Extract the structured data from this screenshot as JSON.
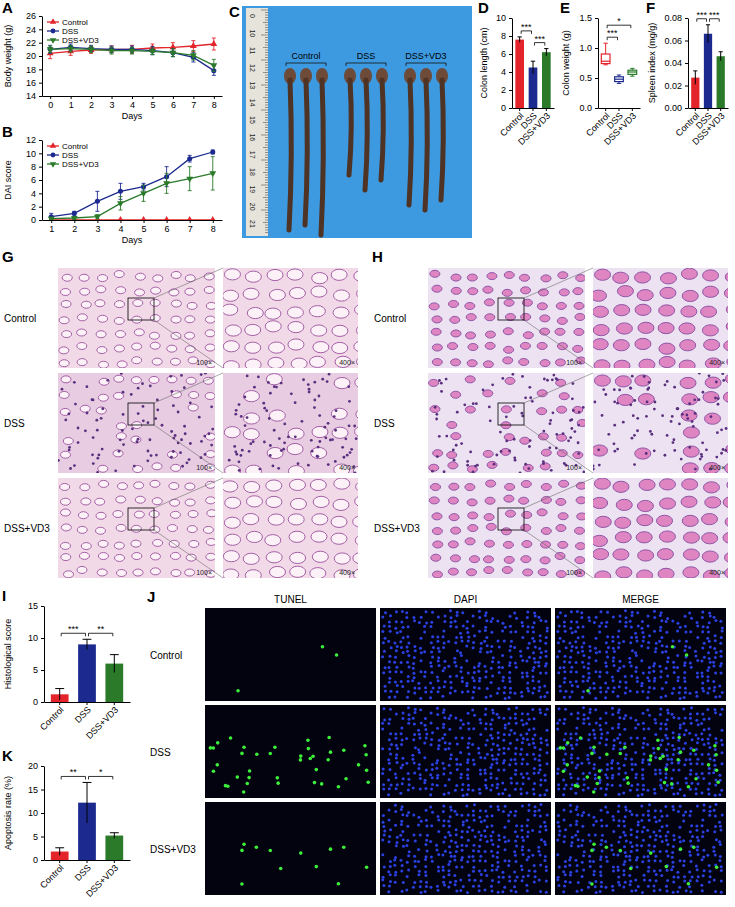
{
  "chart_data": [
    {
      "panel_label": "A",
      "type": "line",
      "x_label": "Days",
      "y_label": "Body weight (g)",
      "x": [
        0,
        1,
        2,
        3,
        4,
        5,
        6,
        7,
        8
      ],
      "xlim": [
        -0.4,
        8.4
      ],
      "xticks": [
        0,
        1,
        2,
        3,
        4,
        5,
        6,
        7,
        8
      ],
      "ylim": [
        14,
        26
      ],
      "yticks": [
        14,
        16,
        18,
        20,
        22,
        24,
        26
      ],
      "legend": "top-left",
      "series": [
        {
          "name": "Control",
          "color": "#e3242b",
          "marker": "triangle",
          "values": [
            20.4,
            20.7,
            20.9,
            21.0,
            21.0,
            21.2,
            21.3,
            21.5,
            21.8
          ],
          "errors": [
            0.8,
            0.6,
            0.5,
            0.5,
            0.6,
            0.6,
            0.7,
            0.8,
            0.9
          ]
        },
        {
          "name": "DSS",
          "color": "#1c2a8f",
          "marker": "circle",
          "values": [
            21.0,
            21.3,
            21.1,
            21.0,
            21.0,
            20.8,
            20.5,
            19.8,
            17.8
          ],
          "errors": [
            0.6,
            0.5,
            0.5,
            0.5,
            0.5,
            0.6,
            0.6,
            0.7,
            0.7
          ]
        },
        {
          "name": "DSS+VD3",
          "color": "#2a7a2a",
          "marker": "triangle-down",
          "values": [
            21.0,
            21.1,
            21.0,
            20.8,
            20.8,
            20.7,
            20.5,
            20.1,
            18.6
          ],
          "errors": [
            0.5,
            0.5,
            0.5,
            0.5,
            0.5,
            0.5,
            0.6,
            0.7,
            0.9
          ]
        }
      ]
    },
    {
      "panel_label": "B",
      "type": "line",
      "x_label": "Days",
      "y_label": "DAI score",
      "x": [
        1,
        2,
        3,
        4,
        5,
        6,
        7,
        8
      ],
      "xlim": [
        0.6,
        8.4
      ],
      "xticks": [
        1,
        2,
        3,
        4,
        5,
        6,
        7,
        8
      ],
      "ylim": [
        0,
        12
      ],
      "yticks": [
        0,
        2,
        4,
        6,
        8,
        10,
        12
      ],
      "legend": "top-left",
      "series": [
        {
          "name": "Control",
          "color": "#e3242b",
          "marker": "triangle",
          "values": [
            0,
            0,
            0,
            0,
            0,
            0,
            0,
            0
          ],
          "errors": [
            0,
            0,
            0,
            0,
            0,
            0,
            0,
            0
          ]
        },
        {
          "name": "DSS",
          "color": "#1c2a8f",
          "marker": "circle",
          "values": [
            0.5,
            1.0,
            2.8,
            4.3,
            5.0,
            6.5,
            9.2,
            10.2
          ],
          "errors": [
            0.5,
            0.3,
            1.5,
            1.2,
            0.5,
            1.5,
            0.5,
            0.3
          ]
        },
        {
          "name": "DSS+VD3",
          "color": "#2a7a2a",
          "marker": "triangle-down",
          "values": [
            0.2,
            0.3,
            0.5,
            2.5,
            4.0,
            5.5,
            6.2,
            7.0
          ],
          "errors": [
            0.2,
            0.2,
            0.3,
            1.0,
            1.2,
            1.5,
            1.8,
            2.5
          ]
        }
      ]
    },
    {
      "panel_label": "D",
      "type": "bar",
      "y_label": "Colon length (cm)",
      "categories": [
        "Control",
        "DSS",
        "DSS+VD3"
      ],
      "values": [
        7.6,
        4.5,
        6.2
      ],
      "errors": [
        0.3,
        0.7,
        0.4
      ],
      "colors": [
        "#e3242b",
        "#1c2a8f",
        "#2a7a2a"
      ],
      "ylim": [
        0,
        10
      ],
      "yticks": [
        0,
        2,
        4,
        6,
        8,
        10
      ],
      "annotations": [
        {
          "from": 0,
          "to": 1,
          "text": "***"
        },
        {
          "from": 1,
          "to": 2,
          "text": "***"
        }
      ]
    },
    {
      "panel_label": "E",
      "type": "box",
      "y_label": "Colon weight (g)",
      "categories": [
        "Control",
        "DSS",
        "DSS+VD3"
      ],
      "colors": [
        "#e3242b",
        "#1c2a8f",
        "#2a7a2a"
      ],
      "boxes": [
        {
          "min": 0.72,
          "q1": 0.74,
          "median": 0.78,
          "q3": 0.9,
          "max": 1.08
        },
        {
          "min": 0.41,
          "q1": 0.44,
          "median": 0.48,
          "q3": 0.52,
          "max": 0.55
        },
        {
          "min": 0.53,
          "q1": 0.56,
          "median": 0.6,
          "q3": 0.63,
          "max": 0.66
        }
      ],
      "ylim": [
        0,
        1.5
      ],
      "yticks": [
        {
          "value": 0,
          "label": "0.0"
        },
        0.5,
        {
          "value": 1,
          "label": "1.0"
        },
        1.5
      ],
      "annotations": [
        {
          "from": 0,
          "to": 1,
          "text": "***"
        },
        {
          "from": 0,
          "to": 2,
          "text": "*"
        }
      ]
    },
    {
      "panel_label": "F",
      "type": "bar",
      "y_label": "Spleen index (mg/g)",
      "categories": [
        "Control",
        "DSS",
        "DSS+VD3"
      ],
      "values": [
        0.027,
        0.066,
        0.046
      ],
      "errors": [
        0.006,
        0.008,
        0.004
      ],
      "colors": [
        "#e3242b",
        "#1c2a8f",
        "#2a7a2a"
      ],
      "ylim": [
        0,
        0.08
      ],
      "yticks": [
        {
          "value": 0,
          "label": "0.00"
        },
        0.02,
        0.04,
        0.06,
        0.08
      ],
      "annotations": [
        {
          "from": 0,
          "to": 1,
          "text": "***"
        },
        {
          "from": 1,
          "to": 2,
          "text": "***"
        }
      ]
    },
    {
      "panel_label": "I",
      "type": "bar",
      "y_label": "Histological score",
      "categories": [
        "Control",
        "DSS",
        "DSS+VD3"
      ],
      "values": [
        1.2,
        9.0,
        6.0
      ],
      "errors": [
        0.9,
        0.8,
        1.4
      ],
      "colors": [
        "#e3242b",
        "#1c2a8f",
        "#2a7a2a"
      ],
      "ylim": [
        0,
        15
      ],
      "yticks": [
        0,
        5,
        10,
        15
      ],
      "annotations": [
        {
          "from": 0,
          "to": 1,
          "text": "***"
        },
        {
          "from": 1,
          "to": 2,
          "text": "**"
        }
      ]
    },
    {
      "panel_label": "K",
      "type": "bar",
      "y_label": "Apoptosis rate (%)",
      "categories": [
        "Control",
        "DSS",
        "DSS+VD3"
      ],
      "values": [
        1.8,
        12.2,
        5.2
      ],
      "errors": [
        0.8,
        4.3,
        0.6
      ],
      "colors": [
        "#e3242b",
        "#1c2a8f",
        "#2a7a2a"
      ],
      "ylim": [
        0,
        20
      ],
      "yticks": [
        0,
        5,
        10,
        15,
        20
      ],
      "annotations": [
        {
          "from": 0,
          "to": 1,
          "text": "**"
        },
        {
          "from": 1,
          "to": 2,
          "text": "*"
        }
      ]
    }
  ],
  "image_panels": [
    {
      "panel_label": "C",
      "groups": [
        "Control",
        "DSS",
        "DSS+VD3"
      ],
      "ruler_labels": [
        "0",
        "10",
        "11",
        "12",
        "13",
        "14",
        "15",
        "16",
        "17",
        "18",
        "19",
        "20",
        "21"
      ]
    },
    {
      "panel_label": "G",
      "rows": [
        "Control",
        "DSS",
        "DSS+VD3"
      ],
      "magnifications": [
        "100×",
        "400×"
      ]
    },
    {
      "panel_label": "H",
      "rows": [
        "Control",
        "DSS",
        "DSS+VD3"
      ],
      "magnifications": [
        "100×",
        "400×"
      ]
    },
    {
      "panel_label": "J",
      "rows": [
        "Control",
        "DSS",
        "DSS+VD3"
      ],
      "columns": [
        "TUNEL",
        "DAPI",
        "MERGE"
      ]
    }
  ]
}
